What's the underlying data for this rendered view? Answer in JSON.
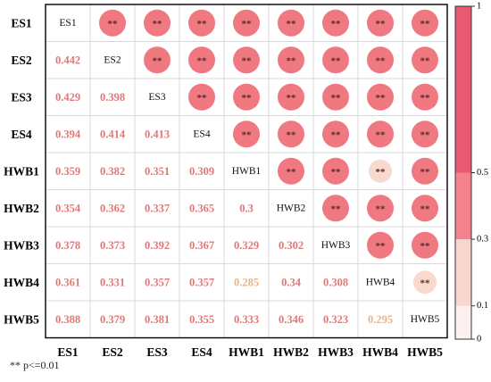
{
  "chart_data": {
    "type": "heatmap",
    "variables": [
      "ES1",
      "ES2",
      "ES3",
      "ES4",
      "HWB1",
      "HWB2",
      "HWB3",
      "HWB4",
      "HWB5"
    ],
    "lower_triangle_r": [
      [
        null,
        null,
        null,
        null,
        null,
        null,
        null,
        null,
        null
      ],
      [
        0.442,
        null,
        null,
        null,
        null,
        null,
        null,
        null,
        null
      ],
      [
        0.429,
        0.398,
        null,
        null,
        null,
        null,
        null,
        null,
        null
      ],
      [
        0.394,
        0.414,
        0.413,
        null,
        null,
        null,
        null,
        null,
        null
      ],
      [
        0.359,
        0.382,
        0.351,
        0.309,
        null,
        null,
        null,
        null,
        null
      ],
      [
        0.354,
        0.362,
        0.337,
        0.365,
        0.3,
        null,
        null,
        null,
        null
      ],
      [
        0.378,
        0.373,
        0.392,
        0.367,
        0.329,
        0.302,
        null,
        null,
        null
      ],
      [
        0.361,
        0.331,
        0.357,
        0.357,
        0.285,
        0.34,
        0.308,
        null,
        null
      ],
      [
        0.388,
        0.379,
        0.381,
        0.355,
        0.333,
        0.346,
        0.323,
        0.295,
        null
      ]
    ],
    "upper_triangle_marker": "**",
    "colorbar": {
      "ticks": [
        "0",
        "0.1",
        "0.3",
        "0.5",
        "1"
      ],
      "bins": [
        {
          "from": 0,
          "to": 0.1,
          "color": "#fdf0f1"
        },
        {
          "from": 0.1,
          "to": 0.3,
          "color": "#f9d5d0"
        },
        {
          "from": 0.3,
          "to": 0.5,
          "color": "#f4828c"
        },
        {
          "from": 0.5,
          "to": 1,
          "color": "#e85a72"
        }
      ]
    },
    "legend_note": "** p<=0.01"
  },
  "colors": {
    "circle_strong": "#f07880",
    "circle_light": "#f9d9cd",
    "text_strong": "#e07878",
    "text_light": "#e7b58a",
    "star": "#5a2a2a",
    "grid": "#d9d9d9"
  }
}
